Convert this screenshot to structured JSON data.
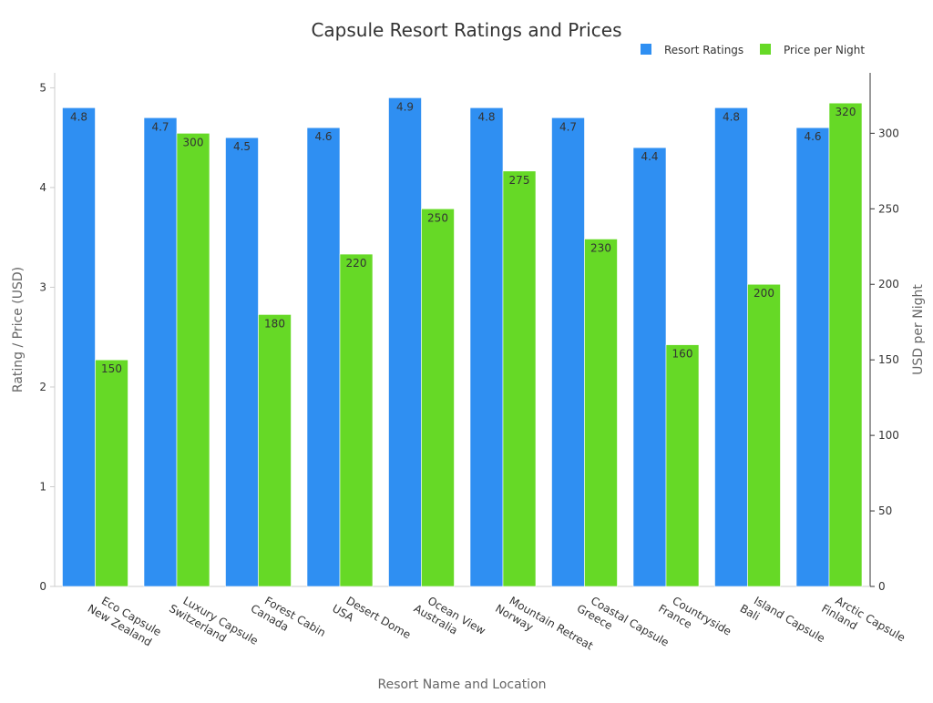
{
  "chart_data": {
    "type": "bar",
    "title": "Capsule Resort Ratings and Prices",
    "xlabel": "Resort Name and Location",
    "ylabel": "Rating / Price (USD)",
    "y2label": "USD per Night",
    "categories": [
      [
        "Eco Capsule",
        "New Zealand"
      ],
      [
        "Luxury Capsule",
        "Switzerland"
      ],
      [
        "Forest Cabin",
        "Canada"
      ],
      [
        "Desert Dome",
        "USA"
      ],
      [
        "Ocean View",
        "Australia"
      ],
      [
        "Mountain Retreat",
        "Norway"
      ],
      [
        "Coastal Capsule",
        "Greece"
      ],
      [
        "Countryside",
        "France"
      ],
      [
        "Island Capsule",
        "Bali"
      ],
      [
        "Arctic Capsule",
        "Finland"
      ]
    ],
    "series": [
      {
        "name": "Resort Ratings",
        "axis": "left",
        "color": "#2f8ff2",
        "values": [
          4.8,
          4.7,
          4.5,
          4.6,
          4.9,
          4.8,
          4.7,
          4.4,
          4.8,
          4.6
        ]
      },
      {
        "name": "Price per Night",
        "axis": "right",
        "color": "#66d926",
        "values": [
          150,
          300,
          180,
          220,
          250,
          275,
          230,
          160,
          200,
          320
        ]
      }
    ],
    "ylim": [
      0,
      5.15
    ],
    "y2lim": [
      0,
      340
    ],
    "yticks": [
      0,
      1,
      2,
      3,
      4,
      5
    ],
    "y2ticks": [
      0,
      50,
      100,
      150,
      200,
      250,
      300
    ],
    "legend": "top-right",
    "grid": false
  }
}
